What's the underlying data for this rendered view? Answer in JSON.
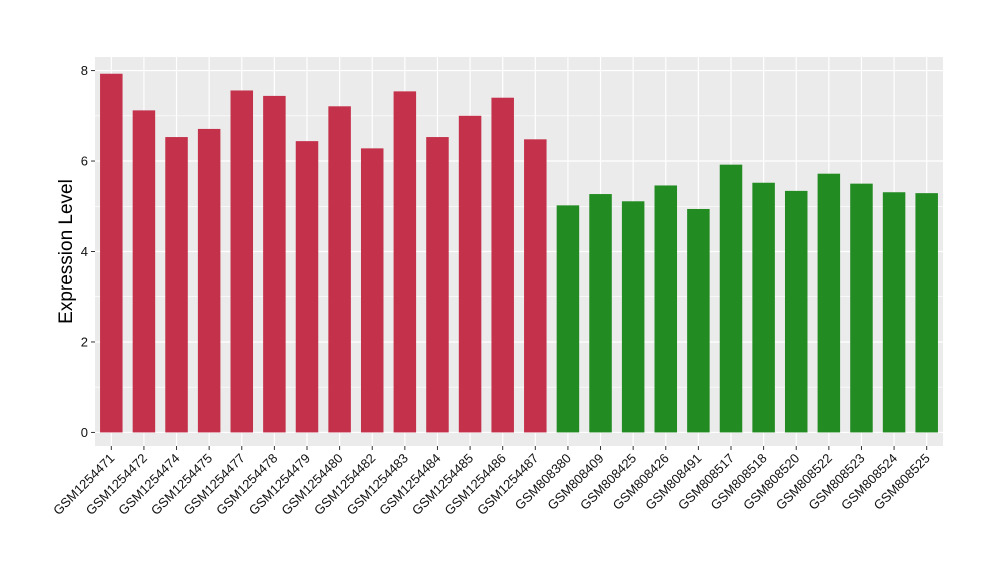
{
  "chart_data": {
    "type": "bar",
    "title": "",
    "xlabel": "",
    "ylabel": "Expression Level",
    "ylim": [
      -0.3,
      8.3
    ],
    "yticks": [
      0,
      2,
      4,
      6,
      8
    ],
    "grid": true,
    "categories": [
      "GSM1254471",
      "GSM1254472",
      "GSM1254474",
      "GSM1254475",
      "GSM1254477",
      "GSM1254478",
      "GSM1254479",
      "GSM1254480",
      "GSM1254482",
      "GSM1254483",
      "GSM1254484",
      "GSM1254485",
      "GSM1254486",
      "GSM1254487",
      "GSM808380",
      "GSM808409",
      "GSM808425",
      "GSM808426",
      "GSM808491",
      "GSM808517",
      "GSM808518",
      "GSM808520",
      "GSM808522",
      "GSM808523",
      "GSM808524",
      "GSM808525"
    ],
    "values": [
      7.93,
      7.12,
      6.53,
      6.71,
      7.56,
      7.44,
      6.44,
      7.21,
      6.28,
      7.54,
      6.53,
      7.0,
      7.4,
      6.48,
      5.02,
      5.27,
      5.11,
      5.46,
      4.94,
      5.92,
      5.52,
      5.34,
      5.72,
      5.5,
      5.31,
      5.29
    ],
    "colors": [
      "#c4314b",
      "#c4314b",
      "#c4314b",
      "#c4314b",
      "#c4314b",
      "#c4314b",
      "#c4314b",
      "#c4314b",
      "#c4314b",
      "#c4314b",
      "#c4314b",
      "#c4314b",
      "#c4314b",
      "#c4314b",
      "#228b22",
      "#228b22",
      "#228b22",
      "#228b22",
      "#228b22",
      "#228b22",
      "#228b22",
      "#228b22",
      "#228b22",
      "#228b22",
      "#228b22",
      "#228b22"
    ],
    "panel_background": "#ebebeb",
    "gridline_color": "#ffffff"
  }
}
